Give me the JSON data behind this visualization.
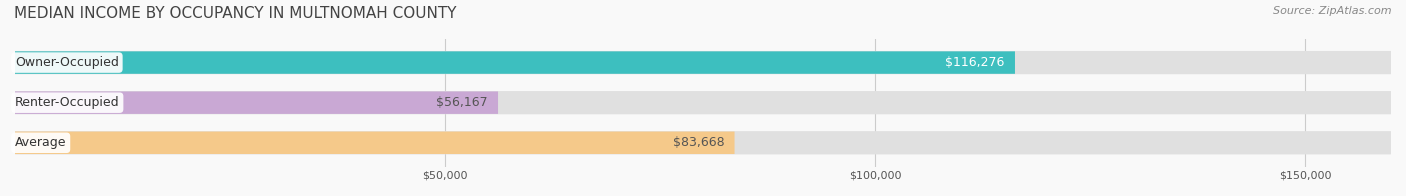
{
  "title": "MEDIAN INCOME BY OCCUPANCY IN MULTNOMAH COUNTY",
  "source": "Source: ZipAtlas.com",
  "categories": [
    "Owner-Occupied",
    "Renter-Occupied",
    "Average"
  ],
  "values": [
    116276,
    56167,
    83668
  ],
  "labels": [
    "$116,276",
    "$56,167",
    "$83,668"
  ],
  "bar_colors": [
    "#3dbfbf",
    "#c9a8d4",
    "#f5c98a"
  ],
  "bar_bg_color": "#e8e8e8",
  "bar_label_inside_color": [
    "#ffffff",
    "#555555",
    "#555555"
  ],
  "xlim": [
    0,
    160000
  ],
  "xticks": [
    0,
    50000,
    100000,
    150000
  ],
  "xticklabels": [
    "",
    "$50,000",
    "$100,000",
    "$150,000"
  ],
  "title_fontsize": 11,
  "source_fontsize": 8,
  "label_fontsize": 9,
  "bar_height": 0.55,
  "figsize": [
    14.06,
    1.96
  ],
  "dpi": 100,
  "grid_color": "#cccccc",
  "background_color": "#f9f9f9"
}
